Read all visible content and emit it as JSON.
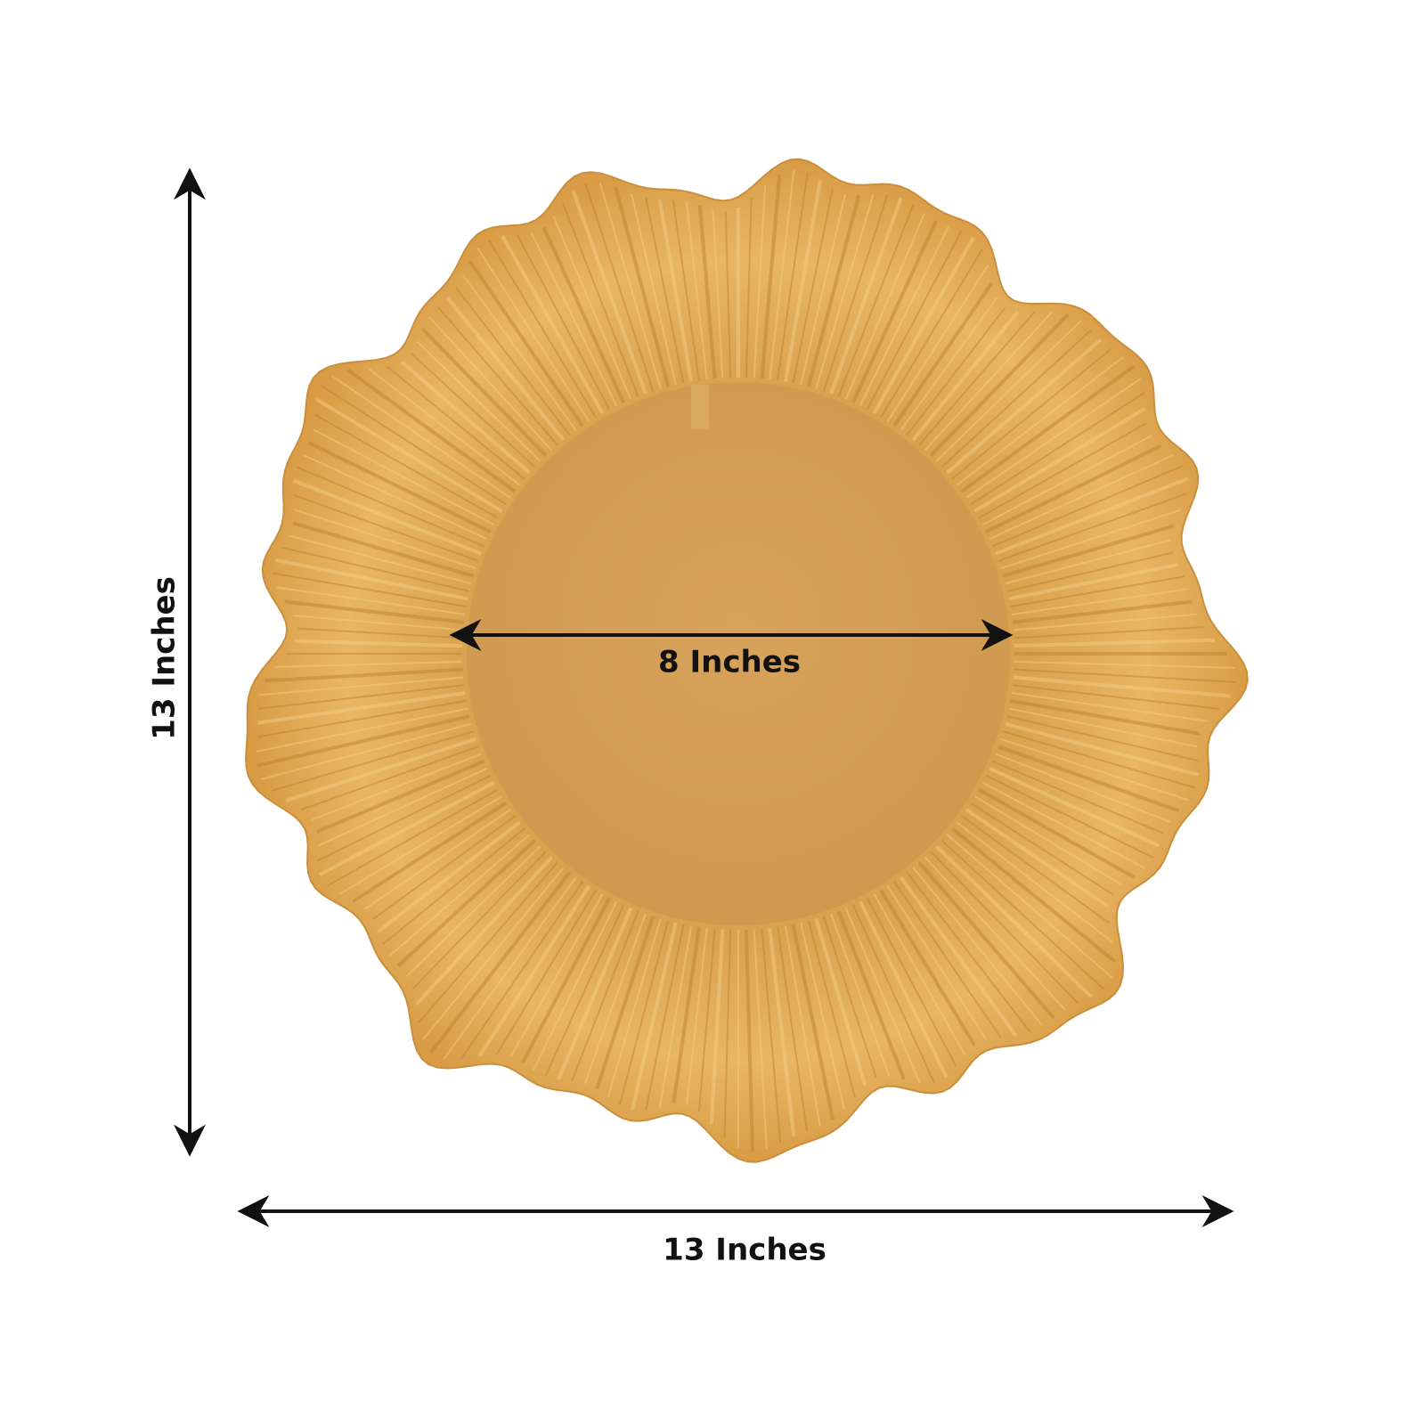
{
  "labels": {
    "height": "13 Inches",
    "width": "13 Inches",
    "inner_diameter": "8 Inches"
  }
}
